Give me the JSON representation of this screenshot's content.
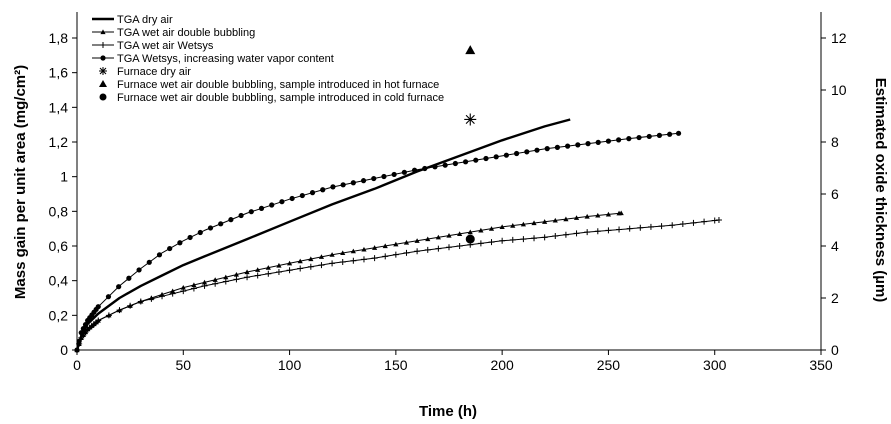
{
  "chart_data": {
    "type": "line",
    "xlabel": "Time (h)",
    "ylabel": "Mass gain per unit area (mg/cm²)",
    "y2label": "Estimated oxide thickness (µm)",
    "xlim": [
      0,
      350
    ],
    "ylim": [
      0,
      1.95
    ],
    "y2lim": [
      0,
      13
    ],
    "x_ticks": [
      0,
      50,
      100,
      150,
      200,
      250,
      300,
      350
    ],
    "x_tick_labels": [
      "0",
      "50",
      "100",
      "150",
      "200",
      "250",
      "300",
      "350"
    ],
    "y_ticks": [
      0,
      0.2,
      0.4,
      0.6,
      0.8,
      1.0,
      1.2,
      1.4,
      1.6,
      1.8
    ],
    "y_tick_labels": [
      "0",
      "0,2",
      "0,4",
      "0,6",
      "0,8",
      "1",
      "1,2",
      "1,4",
      "1,6",
      "1,8"
    ],
    "y2_ticks": [
      0,
      2,
      4,
      6,
      8,
      10,
      12
    ],
    "y2_tick_labels": [
      "0",
      "2",
      "4",
      "6",
      "8",
      "10",
      "12"
    ],
    "grid": false,
    "legend_position": "top-left",
    "series": [
      {
        "name": "TGA dry air",
        "marker": "none",
        "x": [
          0,
          2,
          5,
          10,
          20,
          30,
          40,
          50,
          60,
          80,
          100,
          120,
          140,
          160,
          180,
          200,
          220,
          232
        ],
        "y": [
          0,
          0.08,
          0.15,
          0.21,
          0.3,
          0.37,
          0.43,
          0.49,
          0.54,
          0.64,
          0.74,
          0.84,
          0.93,
          1.03,
          1.12,
          1.21,
          1.29,
          1.33
        ]
      },
      {
        "name": "TGA wet air double bubbling",
        "marker": "triangle",
        "x": [
          0,
          2,
          5,
          10,
          20,
          30,
          40,
          50,
          60,
          80,
          100,
          120,
          140,
          160,
          180,
          200,
          220,
          240,
          256
        ],
        "y": [
          0,
          0.07,
          0.12,
          0.17,
          0.23,
          0.28,
          0.32,
          0.36,
          0.39,
          0.45,
          0.5,
          0.55,
          0.59,
          0.63,
          0.67,
          0.71,
          0.74,
          0.77,
          0.79
        ]
      },
      {
        "name": "TGA wet air Wetsys",
        "marker": "plus",
        "x": [
          0,
          2,
          5,
          10,
          20,
          30,
          40,
          50,
          60,
          80,
          100,
          120,
          140,
          160,
          180,
          200,
          220,
          240,
          260,
          280,
          302
        ],
        "y": [
          0,
          0.07,
          0.12,
          0.17,
          0.23,
          0.28,
          0.31,
          0.34,
          0.37,
          0.42,
          0.46,
          0.5,
          0.53,
          0.57,
          0.6,
          0.63,
          0.65,
          0.68,
          0.7,
          0.72,
          0.75
        ]
      },
      {
        "name": "TGA Wetsys, increasing water vapor content",
        "marker": "dot",
        "x": [
          0,
          2,
          5,
          10,
          20,
          30,
          40,
          50,
          60,
          80,
          100,
          120,
          140,
          160,
          180,
          200,
          220,
          240,
          260,
          283
        ],
        "y": [
          0,
          0.1,
          0.17,
          0.25,
          0.37,
          0.47,
          0.56,
          0.63,
          0.69,
          0.79,
          0.87,
          0.94,
          0.99,
          1.04,
          1.08,
          1.12,
          1.16,
          1.19,
          1.22,
          1.25
        ]
      }
    ],
    "points": [
      {
        "name": "Furnace dry air",
        "marker": "asterisk",
        "x": 185,
        "y": 1.33
      },
      {
        "name": "Furnace wet air double bubbling, sample introduced in hot furnace",
        "marker": "filled-triangle",
        "x": 185,
        "y": 1.73
      },
      {
        "name": "Furnace wet air double bubbling, sample introduced in cold furnace",
        "marker": "filled-circle",
        "x": 185,
        "y": 0.64
      }
    ]
  }
}
